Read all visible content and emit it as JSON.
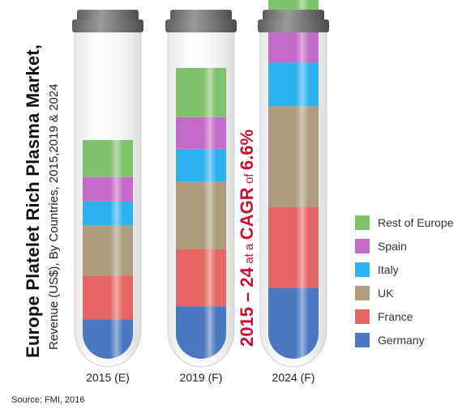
{
  "title": "Europe Platelet Rich Plasma Market,",
  "subtitle": "Revenue (US$), By Countries, 2015,2019 & 2024",
  "cagr": {
    "range": "2015 – 24",
    "at_a": "at a",
    "label": "CAGR",
    "of": "of",
    "value": "6.6%"
  },
  "source": "Source: FMI, 2016",
  "chart_data": {
    "type": "bar",
    "stacked": true,
    "categories": [
      "2015 (E)",
      "2019 (F)",
      "2024 (F)"
    ],
    "series": [
      {
        "name": "Germany",
        "color": "#4a78c0",
        "values": [
          0.36,
          0.48,
          0.65
        ]
      },
      {
        "name": "France",
        "color": "#e56663",
        "values": [
          0.4,
          0.52,
          0.74
        ]
      },
      {
        "name": "UK",
        "color": "#ad9c7e",
        "values": [
          0.46,
          0.62,
          0.92
        ]
      },
      {
        "name": "Italy",
        "color": "#2db2ef",
        "values": [
          0.22,
          0.3,
          0.4
        ]
      },
      {
        "name": "Spain",
        "color": "#c46ac8",
        "values": [
          0.22,
          0.29,
          0.39
        ]
      },
      {
        "name": "Rest of Europe",
        "color": "#7fc26c",
        "values": [
          0.34,
          0.45,
          0.55
        ]
      }
    ],
    "legend_position": "right",
    "grid": false
  }
}
